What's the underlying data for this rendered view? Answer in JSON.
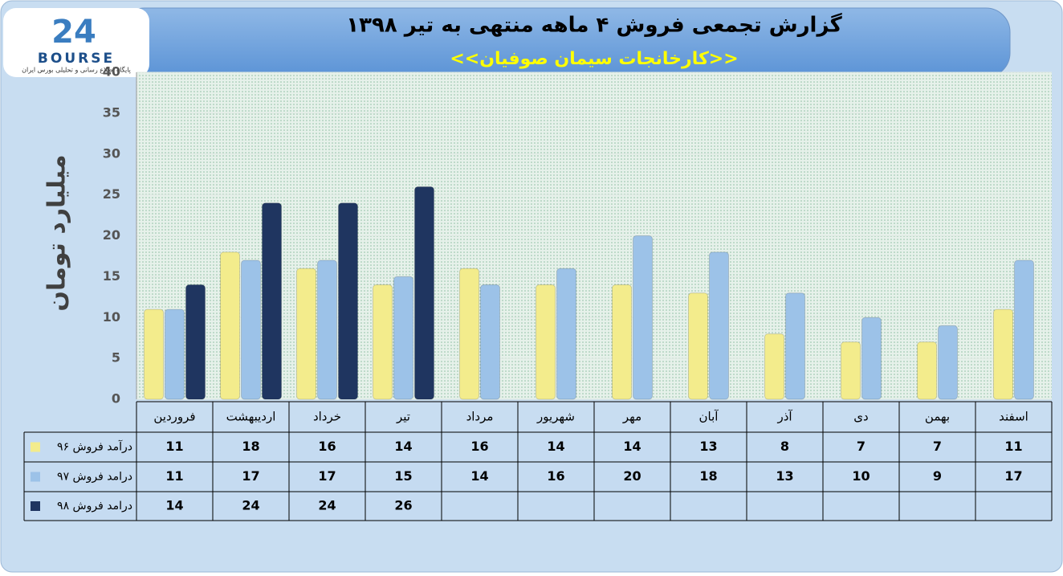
{
  "logo": {
    "number": "24",
    "name": "BOURSE",
    "tagline": "پایگاه اطلاع رسانی و تحلیلی بورس ایران"
  },
  "chart_data": {
    "type": "bar",
    "title": "گزارش تجمعی فروش ۴ ماهه منتهی به تیر ۱۳۹۸",
    "subtitle": "<<کارخانجات سیمان صوفیان>>",
    "y_label": "میلیارد تومان",
    "categories": [
      "فروردین",
      "اردیبهشت",
      "خرداد",
      "تیر",
      "مرداد",
      "شهریور",
      "مهر",
      "آبان",
      "آذر",
      "دی",
      "بهمن",
      "اسفند"
    ],
    "series": [
      {
        "name": "درآمد فروش ۹۶",
        "color": "#f3ec8c",
        "values": [
          11,
          18,
          16,
          14,
          16,
          14,
          14,
          13,
          8,
          7,
          7,
          11
        ]
      },
      {
        "name": "درامد فروش ۹۷",
        "color": "#9cc2e8",
        "values": [
          11,
          17,
          17,
          15,
          14,
          16,
          20,
          18,
          13,
          10,
          9,
          17
        ]
      },
      {
        "name": "درامد فروش ۹۸",
        "color": "#1f3560",
        "values": [
          14,
          24,
          24,
          26,
          null,
          null,
          null,
          null,
          null,
          null,
          null,
          null
        ]
      }
    ],
    "ylim": [
      0,
      40
    ],
    "yticks": [
      0,
      5,
      10,
      15,
      20,
      25,
      30,
      35,
      40
    ],
    "grid": true
  }
}
